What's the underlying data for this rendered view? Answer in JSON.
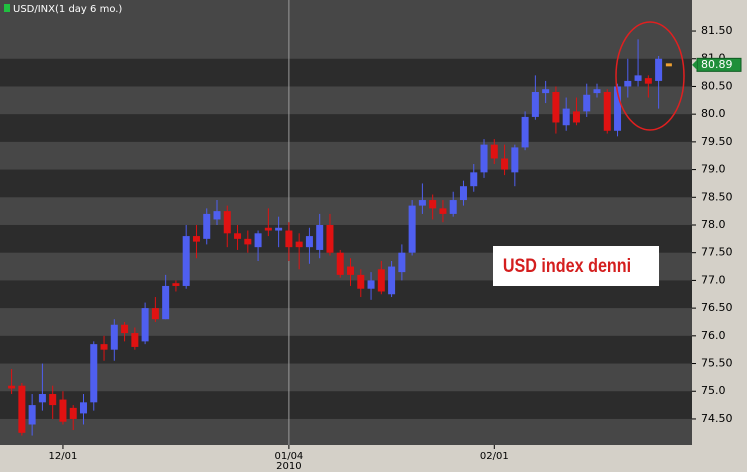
{
  "chart_data": {
    "type": "candlestick",
    "title": "USD/INX(1 day 6 mo.)",
    "annotation": "USD index denni",
    "categories": [
      null,
      null,
      null,
      null,
      null,
      "12/01",
      null,
      null,
      null,
      null,
      null,
      null,
      null,
      null,
      null,
      null,
      null,
      null,
      null,
      null,
      null,
      null,
      null,
      null,
      null,
      null,
      null,
      "01/04",
      null,
      null,
      null,
      null,
      null,
      null,
      null,
      null,
      null,
      null,
      null,
      null,
      null,
      null,
      null,
      null,
      null,
      null,
      null,
      "02/01",
      null,
      null,
      null,
      null,
      null,
      null,
      null,
      null,
      null,
      null,
      null,
      null,
      null,
      null,
      null,
      null
    ],
    "x_sublabel": "2010",
    "open": [
      75.1,
      75.1,
      74.4,
      74.8,
      74.95,
      74.85,
      74.7,
      74.6,
      74.8,
      75.85,
      75.75,
      76.2,
      76.05,
      75.9,
      76.5,
      76.3,
      76.95,
      76.9,
      77.8,
      77.75,
      78.1,
      78.25,
      77.85,
      77.75,
      77.6,
      77.95,
      77.9,
      77.9,
      77.7,
      77.6,
      77.55,
      78.0,
      77.5,
      77.25,
      77.1,
      76.85,
      77.2,
      76.75,
      77.15,
      77.5,
      78.35,
      78.45,
      78.3,
      78.2,
      78.45,
      78.7,
      78.95,
      79.45,
      79.2,
      78.95,
      79.4,
      79.95,
      80.38,
      80.4,
      79.8,
      80.05,
      80.05,
      80.38,
      80.4,
      79.7,
      80.5,
      80.6,
      80.65,
      80.6
    ],
    "high": [
      75.4,
      75.15,
      74.95,
      75.5,
      75.1,
      75.0,
      74.75,
      74.95,
      75.9,
      76.0,
      76.3,
      76.25,
      76.15,
      76.6,
      76.7,
      77.1,
      77.0,
      78.0,
      78.0,
      78.3,
      78.45,
      78.35,
      78.0,
      77.9,
      77.9,
      78.3,
      78.15,
      78.05,
      77.85,
      77.95,
      78.2,
      78.2,
      77.55,
      77.4,
      77.2,
      77.15,
      77.35,
      77.35,
      77.65,
      78.45,
      78.75,
      78.55,
      78.45,
      78.6,
      78.8,
      79.1,
      79.55,
      79.55,
      79.45,
      79.45,
      80.05,
      80.7,
      80.6,
      80.5,
      80.3,
      80.3,
      80.55,
      80.55,
      80.45,
      80.55,
      81.0,
      81.35,
      80.7,
      81.05
    ],
    "low": [
      74.95,
      74.2,
      74.2,
      74.65,
      74.5,
      74.4,
      74.3,
      74.4,
      74.65,
      75.55,
      75.55,
      75.9,
      75.75,
      75.85,
      76.25,
      76.3,
      76.8,
      76.85,
      77.4,
      77.65,
      78.0,
      77.6,
      77.55,
      77.5,
      77.35,
      77.8,
      77.6,
      77.35,
      77.2,
      77.3,
      77.4,
      77.45,
      77.05,
      76.9,
      76.7,
      76.65,
      76.75,
      76.7,
      77.0,
      77.45,
      78.2,
      78.1,
      78.05,
      78.15,
      78.35,
      78.6,
      78.85,
      79.1,
      78.9,
      78.7,
      79.35,
      79.9,
      80.2,
      79.65,
      79.7,
      79.8,
      79.95,
      80.3,
      79.65,
      79.6,
      80.3,
      80.5,
      80.3,
      80.1
    ],
    "close": [
      75.05,
      74.25,
      74.75,
      74.95,
      74.75,
      74.45,
      74.5,
      74.8,
      75.85,
      75.75,
      76.2,
      76.05,
      75.8,
      76.5,
      76.3,
      76.9,
      76.9,
      77.8,
      77.7,
      78.2,
      78.25,
      77.85,
      77.75,
      77.65,
      77.85,
      77.9,
      77.95,
      77.6,
      77.6,
      77.8,
      78.0,
      77.5,
      77.1,
      77.1,
      76.85,
      77.0,
      76.8,
      77.25,
      77.5,
      78.35,
      78.45,
      78.3,
      78.2,
      78.45,
      78.7,
      78.95,
      79.45,
      79.2,
      79.0,
      79.4,
      79.95,
      80.4,
      80.45,
      79.85,
      80.1,
      79.85,
      80.35,
      80.45,
      79.7,
      80.5,
      80.6,
      80.7,
      80.55,
      81.0
    ],
    "up_color": "#4f5ff0",
    "down_color": "#e01212",
    "last_price": 80.89,
    "last_price_color": "#f0a030",
    "ylim": [
      74.03,
      82.06
    ],
    "yticks": [
      {
        "value": 74.5,
        "label": "74.50"
      },
      {
        "value": 75,
        "label": "75.0"
      },
      {
        "value": 75.5,
        "label": "75.50"
      },
      {
        "value": 76,
        "label": "76.0"
      },
      {
        "value": 76.5,
        "label": "76.50"
      },
      {
        "value": 77,
        "label": "77.0"
      },
      {
        "value": 77.5,
        "label": "77.50"
      },
      {
        "value": 78,
        "label": "78.0"
      },
      {
        "value": 78.5,
        "label": "78.50"
      },
      {
        "value": 79,
        "label": "79.0"
      },
      {
        "value": 79.5,
        "label": "79.50"
      },
      {
        "value": 80,
        "label": "80.0"
      },
      {
        "value": 80.5,
        "label": "80.50"
      },
      {
        "value": 81,
        "label": "81.0"
      },
      {
        "value": 81.5,
        "label": "81.50"
      }
    ]
  }
}
